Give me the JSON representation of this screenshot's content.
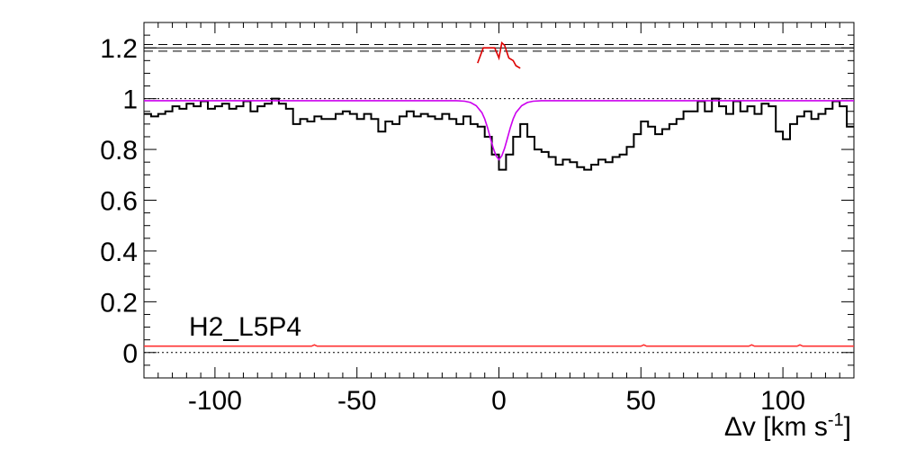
{
  "chart_data": {
    "type": "line",
    "xlabel_main": "Δv [km s",
    "xlabel_sup": "-1",
    "xlabel_close": "]",
    "ylabel": "",
    "annotation": "H2_L5P4",
    "xlim": [
      -125,
      125
    ],
    "ylim": [
      -0.1,
      1.3
    ],
    "xticks": [
      -100,
      -50,
      0,
      50,
      100
    ],
    "xtick_labels": [
      "-100",
      "-50",
      "0",
      "50",
      "100"
    ],
    "yticks": [
      0,
      0.2,
      0.4,
      0.6,
      0.8,
      1,
      1.2
    ],
    "ytick_labels": [
      "0",
      "0.2",
      "0.4",
      "0.6",
      "0.8",
      "1",
      "1.2"
    ],
    "colors": {
      "spectrum": "#000000",
      "model": "#cc00ee",
      "error": "#ff3333",
      "residual": "#dd0000",
      "reference": "#000000"
    },
    "reference_lines": [
      {
        "y": 1.0,
        "style": "dotted"
      },
      {
        "y": 0.0,
        "style": "dotted"
      },
      {
        "y": 1.2,
        "style": "solid"
      },
      {
        "y": 1.213,
        "style": "dashed"
      },
      {
        "y": 1.187,
        "style": "dashed"
      }
    ],
    "series": [
      {
        "kind": "step",
        "x": [
          -125,
          -122.5,
          -120,
          -117.5,
          -115,
          -112.5,
          -110,
          -107.5,
          -105,
          -102.5,
          -100,
          -97.5,
          -95,
          -92.5,
          -90,
          -87.5,
          -85,
          -82.5,
          -80,
          -77.5,
          -75,
          -72.5,
          -70,
          -67.5,
          -65,
          -62.5,
          -60,
          -57.5,
          -55,
          -52.5,
          -50,
          -47.5,
          -45,
          -42.5,
          -40,
          -37.5,
          -35,
          -32.5,
          -30,
          -27.5,
          -25,
          -22.5,
          -20,
          -17.5,
          -15,
          -12.5,
          -10,
          -7.5,
          -5,
          -2.5,
          0,
          2.5,
          5,
          7.5,
          10,
          12.5,
          15,
          17.5,
          20,
          22.5,
          25,
          27.5,
          30,
          32.5,
          35,
          37.5,
          40,
          42.5,
          45,
          47.5,
          50,
          52.5,
          55,
          57.5,
          60,
          62.5,
          65,
          67.5,
          70,
          72.5,
          75,
          77.5,
          80,
          82.5,
          85,
          87.5,
          90,
          92.5,
          95,
          97.5,
          100,
          102.5,
          105,
          107.5,
          110,
          112.5,
          115,
          117.5,
          120,
          122.5,
          125
        ],
        "values": [
          0.94,
          0.93,
          0.94,
          0.95,
          0.97,
          0.96,
          0.98,
          0.97,
          0.99,
          0.96,
          0.97,
          0.98,
          0.96,
          0.97,
          0.99,
          0.95,
          0.97,
          0.98,
          1.0,
          0.98,
          0.96,
          0.9,
          0.92,
          0.91,
          0.93,
          0.92,
          0.92,
          0.94,
          0.95,
          0.94,
          0.92,
          0.94,
          0.92,
          0.87,
          0.91,
          0.9,
          0.93,
          0.95,
          0.93,
          0.94,
          0.93,
          0.92,
          0.94,
          0.92,
          0.9,
          0.93,
          0.9,
          0.89,
          0.85,
          0.78,
          0.72,
          0.78,
          0.85,
          0.9,
          0.85,
          0.8,
          0.79,
          0.77,
          0.74,
          0.76,
          0.75,
          0.73,
          0.72,
          0.74,
          0.76,
          0.75,
          0.77,
          0.78,
          0.81,
          0.86,
          0.91,
          0.89,
          0.86,
          0.88,
          0.9,
          0.92,
          0.95,
          0.95,
          0.99,
          0.95,
          1.0,
          0.97,
          0.94,
          0.99,
          0.95,
          0.97,
          0.94,
          0.98,
          0.97,
          0.87,
          0.84,
          0.9,
          0.93,
          0.95,
          0.92,
          0.94,
          0.96,
          0.99,
          0.97,
          0.89,
          0.89
        ]
      },
      {
        "kind": "model",
        "x": [
          -125,
          -20,
          -15,
          -12,
          -10,
          -8,
          -6,
          -5,
          -4,
          -3,
          -2,
          -1,
          0,
          1,
          2,
          3,
          4,
          5,
          6,
          8,
          10,
          12,
          15,
          20,
          125
        ],
        "values": [
          0.992,
          0.992,
          0.992,
          0.99,
          0.985,
          0.972,
          0.945,
          0.92,
          0.885,
          0.845,
          0.805,
          0.775,
          0.76,
          0.775,
          0.805,
          0.845,
          0.885,
          0.92,
          0.945,
          0.972,
          0.985,
          0.99,
          0.992,
          0.992,
          0.992
        ]
      },
      {
        "kind": "error",
        "x": [
          -125,
          -100,
          -75,
          -66,
          -65,
          -64,
          -50,
          -25,
          0,
          25,
          50,
          51,
          52,
          70,
          88,
          89,
          90,
          100,
          105,
          106,
          107,
          125
        ],
        "values": [
          0.025,
          0.025,
          0.025,
          0.025,
          0.03,
          0.025,
          0.025,
          0.025,
          0.025,
          0.025,
          0.025,
          0.03,
          0.025,
          0.025,
          0.025,
          0.03,
          0.025,
          0.025,
          0.025,
          0.03,
          0.025,
          0.025
        ]
      },
      {
        "kind": "residual",
        "x": [
          -7.5,
          -5.5,
          -4,
          -2.5,
          -1.5,
          0,
          1,
          2,
          3.5,
          5,
          6,
          7.5
        ],
        "values": [
          1.14,
          1.2,
          1.2,
          1.2,
          1.2,
          1.16,
          1.22,
          1.21,
          1.16,
          1.15,
          1.13,
          1.12
        ]
      }
    ]
  }
}
